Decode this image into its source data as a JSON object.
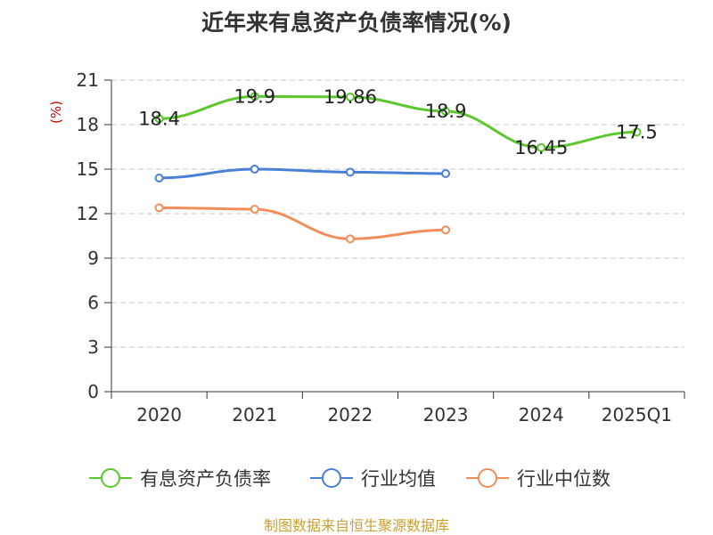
{
  "chart_data": {
    "type": "line",
    "title": "近年来有息资产负债率情况(%)",
    "xlabel": "",
    "ylabel": "(%)",
    "categories": [
      "2020",
      "2021",
      "2022",
      "2023",
      "2024",
      "2025Q1"
    ],
    "ylim": [
      0,
      21
    ],
    "yticks": [
      0,
      3,
      6,
      9,
      12,
      15,
      18,
      21
    ],
    "grid": "horizontal dashed",
    "legend_position": "bottom",
    "series": [
      {
        "name": "有息资产负债率",
        "color": "#5cc72e",
        "values": [
          18.4,
          19.9,
          19.86,
          18.9,
          16.45,
          17.5
        ],
        "labels": [
          "18.4",
          "19.9",
          "19.86",
          "18.9",
          "16.45",
          "17.5"
        ],
        "show_labels": true
      },
      {
        "name": "行业均值",
        "color": "#4a7fd6",
        "values": [
          14.4,
          15.0,
          14.8,
          14.7,
          null,
          null
        ],
        "show_labels": false
      },
      {
        "name": "行业中位数",
        "color": "#f28e5a",
        "values": [
          12.4,
          12.3,
          10.3,
          10.9,
          null,
          null
        ],
        "show_labels": false
      }
    ]
  },
  "source_note": "制图数据来自恒生聚源数据库"
}
